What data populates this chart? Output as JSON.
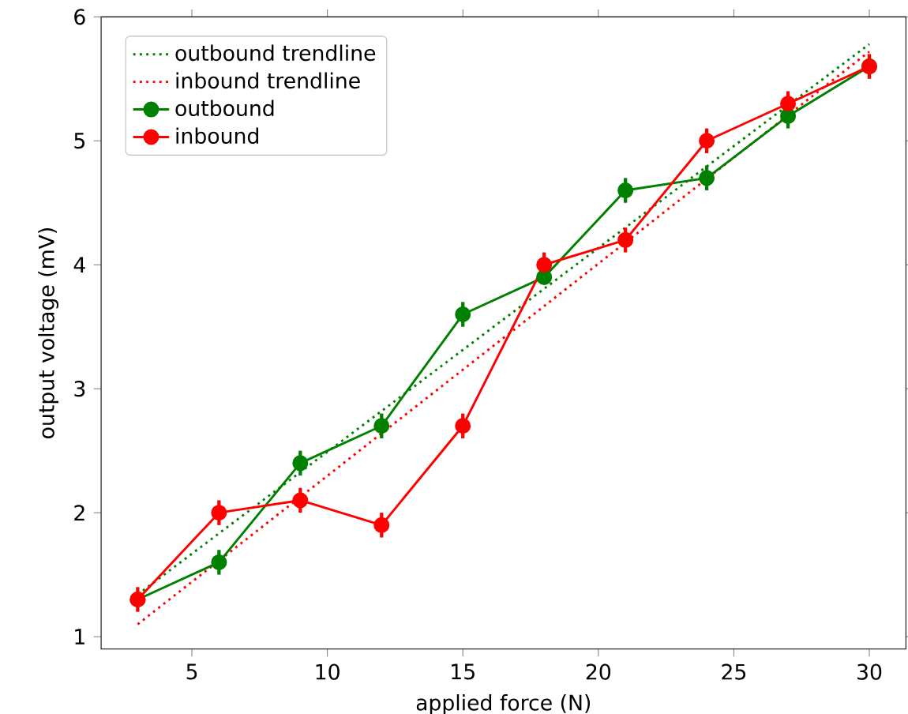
{
  "chart_data": {
    "type": "line",
    "xlabel": "applied force (N)",
    "ylabel": "output voltage (mV)",
    "xlim": [
      1.65,
      31.35
    ],
    "ylim": [
      0.9,
      6
    ],
    "xticks": [
      5,
      10,
      15,
      20,
      25,
      30
    ],
    "yticks": [
      1,
      2,
      3,
      4,
      5,
      6
    ],
    "legend": "top left",
    "grid": false,
    "series": [
      {
        "name": "outbound trendline",
        "color": "#008000",
        "line_style": "dotted",
        "marker": "none",
        "x": [
          3,
          30
        ],
        "values": [
          1.34,
          5.78
        ]
      },
      {
        "name": "inbound trendline",
        "color": "#ff0000",
        "line_style": "dotted",
        "marker": "none",
        "x": [
          3,
          30
        ],
        "values": [
          1.1,
          5.72
        ]
      },
      {
        "name": "outbound",
        "color": "#008000",
        "line_style": "solid",
        "marker": "circle",
        "x": [
          3,
          6,
          9,
          12,
          15,
          18,
          21,
          24,
          27,
          30
        ],
        "values": [
          1.3,
          1.6,
          2.4,
          2.7,
          3.6,
          3.9,
          4.6,
          4.7,
          5.2,
          5.6
        ],
        "errors": [
          null,
          0.1,
          0.1,
          0.1,
          0.1,
          null,
          0.1,
          0.1,
          0.1,
          null
        ]
      },
      {
        "name": "inbound",
        "color": "#ff0000",
        "line_style": "solid",
        "marker": "circle",
        "x": [
          3,
          6,
          9,
          12,
          15,
          18,
          21,
          24,
          27,
          30
        ],
        "values": [
          1.3,
          2.0,
          2.1,
          1.9,
          2.7,
          4.0,
          4.2,
          5.0,
          5.3,
          5.6
        ],
        "errors": [
          0.1,
          0.1,
          0.1,
          0.1,
          0.1,
          0.1,
          0.1,
          0.1,
          0.1,
          0.1
        ]
      }
    ]
  }
}
